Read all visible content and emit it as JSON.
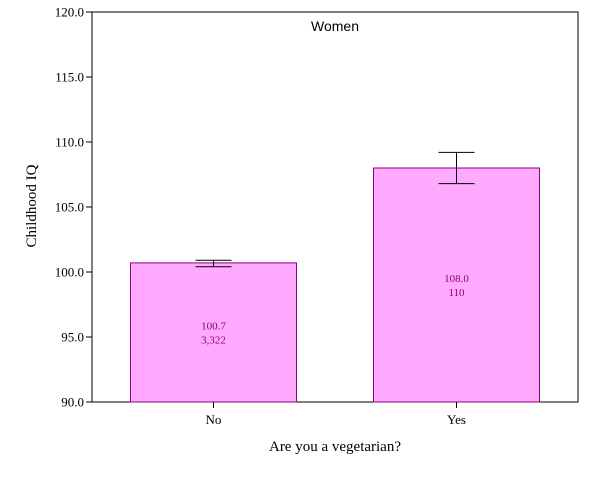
{
  "chart_data": {
    "type": "bar",
    "title": "Women",
    "xlabel": "Are you a vegetarian?",
    "ylabel": "Childhood IQ",
    "categories": [
      "No",
      "Yes"
    ],
    "values": [
      100.7,
      108.0
    ],
    "value_labels": [
      "100.7",
      "108.0"
    ],
    "count_labels": [
      "3,322",
      "110"
    ],
    "error_low": [
      100.4,
      106.8
    ],
    "error_high": [
      100.9,
      109.2
    ],
    "ylim": [
      90.0,
      120.0
    ],
    "yticks": [
      90.0,
      95.0,
      100.0,
      105.0,
      110.0,
      115.0,
      120.0
    ],
    "ytick_labels": [
      "90.0",
      "95.0",
      "100.0",
      "105.0",
      "110.0",
      "115.0",
      "120.0"
    ],
    "grid": false,
    "colors": {
      "bar_fill": "#ffaaff",
      "bar_stroke": "#8b007b",
      "label_text": "#8b007b",
      "axis": "#000000"
    }
  }
}
